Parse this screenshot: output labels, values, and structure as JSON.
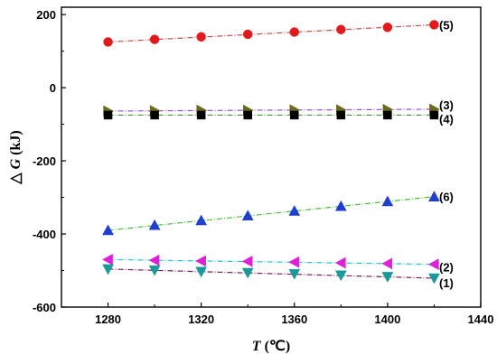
{
  "chart_data": {
    "type": "scatter",
    "xlabel_italic": "T",
    "xlabel_unit": "(℃)",
    "ylabel_prefix": "△",
    "ylabel_italic": "G",
    "ylabel_unit": " (kJ)",
    "xlim": [
      1260,
      1440
    ],
    "ylim": [
      -600,
      220
    ],
    "x_ticks": [
      1280,
      1320,
      1360,
      1400,
      1440
    ],
    "y_ticks": [
      -600,
      -400,
      -200,
      0,
      200
    ],
    "grid": false,
    "series": [
      {
        "label": "(5)",
        "marker": "circle",
        "color": "#e31a1c",
        "line_color": "#c0504d",
        "x": [
          1280,
          1300,
          1320,
          1340,
          1360,
          1380,
          1400,
          1420
        ],
        "y": [
          125,
          132,
          139,
          146,
          152,
          159,
          165,
          172
        ]
      },
      {
        "label": "(3)",
        "marker": "triangle-right",
        "color": "#6b6b1a",
        "line_color": "#9b4fd8",
        "x": [
          1280,
          1300,
          1320,
          1340,
          1360,
          1380,
          1400,
          1420
        ],
        "y": [
          -64,
          -63,
          -62,
          -62,
          -61,
          -61,
          -60,
          -59
        ]
      },
      {
        "label": "(4)",
        "marker": "square",
        "color": "#000000",
        "line_color": "#4b8b3b",
        "x": [
          1280,
          1300,
          1320,
          1340,
          1360,
          1380,
          1400,
          1420
        ],
        "y": [
          -75,
          -75,
          -75,
          -75,
          -75,
          -75,
          -75,
          -75
        ]
      },
      {
        "label": "(6)",
        "marker": "triangle-up",
        "color": "#1f3fd1",
        "line_color": "#4bbf3b",
        "x": [
          1280,
          1300,
          1320,
          1340,
          1360,
          1380,
          1400,
          1420
        ],
        "y": [
          -390,
          -376,
          -363,
          -350,
          -337,
          -324,
          -311,
          -298
        ]
      },
      {
        "label": "(2)",
        "marker": "triangle-left",
        "color": "#e020d8",
        "line_color": "#20c8c8",
        "x": [
          1280,
          1300,
          1320,
          1340,
          1360,
          1380,
          1400,
          1420
        ],
        "y": [
          -470,
          -472,
          -474,
          -475,
          -477,
          -479,
          -481,
          -483
        ]
      },
      {
        "label": "(1)",
        "marker": "triangle-down",
        "color": "#1a9a9a",
        "line_color": "#7a1f5a",
        "x": [
          1280,
          1300,
          1320,
          1340,
          1360,
          1380,
          1400,
          1420
        ],
        "y": [
          -496,
          -499,
          -503,
          -506,
          -509,
          -513,
          -517,
          -521
        ]
      }
    ]
  }
}
